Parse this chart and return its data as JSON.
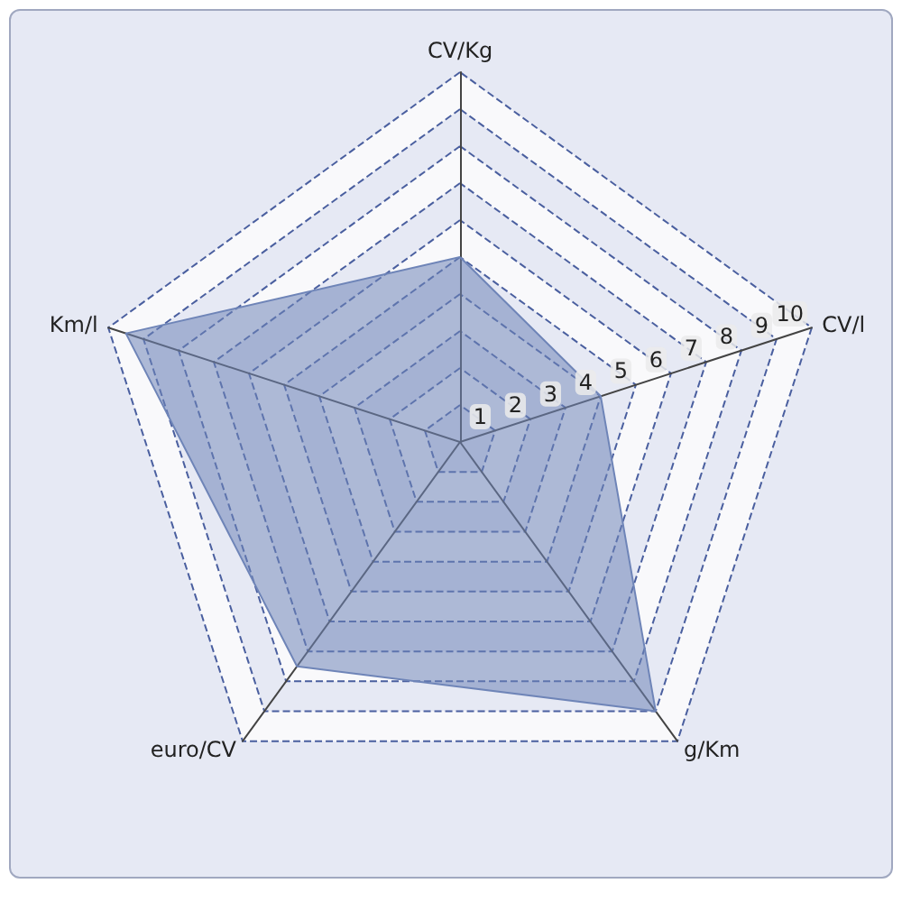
{
  "chart_data": {
    "type": "radar",
    "categories": [
      "CV/Kg",
      "CV/l",
      "g/Km",
      "euro/CV",
      "Km/l"
    ],
    "series": [
      {
        "color": "#6f85b8",
        "values": [
          5,
          4,
          9,
          7.5,
          9.5
        ]
      }
    ],
    "ylim": [
      0,
      10
    ],
    "yticks": [
      1,
      2,
      3,
      4,
      5,
      6,
      7,
      8,
      9,
      10
    ],
    "grid": true
  }
}
